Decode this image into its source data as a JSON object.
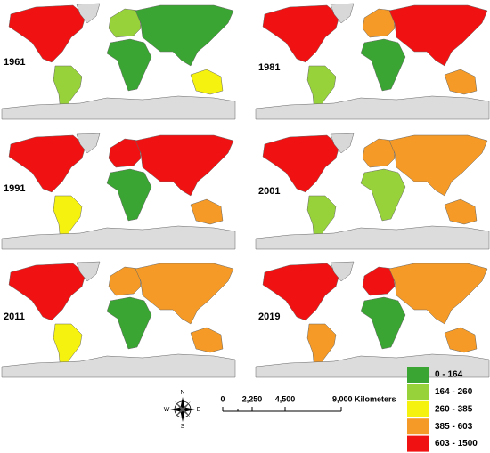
{
  "panels": [
    {
      "year": "1961"
    },
    {
      "year": "1981"
    },
    {
      "year": "1991"
    },
    {
      "year": "2001"
    },
    {
      "year": "2011"
    },
    {
      "year": "2019"
    }
  ],
  "legend": [
    {
      "label": "0 - 164",
      "color": "#3aa532"
    },
    {
      "label": "164 - 260",
      "color": "#98d23a"
    },
    {
      "label": "260 - 385",
      "color": "#f4f20e"
    },
    {
      "label": "385 - 603",
      "color": "#f59a26"
    },
    {
      "label": "603 - 1500",
      "color": "#f01212"
    }
  ],
  "scale": {
    "labels": [
      "0",
      "2,250",
      "4,500",
      "9,000 Kilometers"
    ]
  },
  "compass": {
    "n": "N",
    "e": "E",
    "s": "S",
    "w": "W"
  }
}
